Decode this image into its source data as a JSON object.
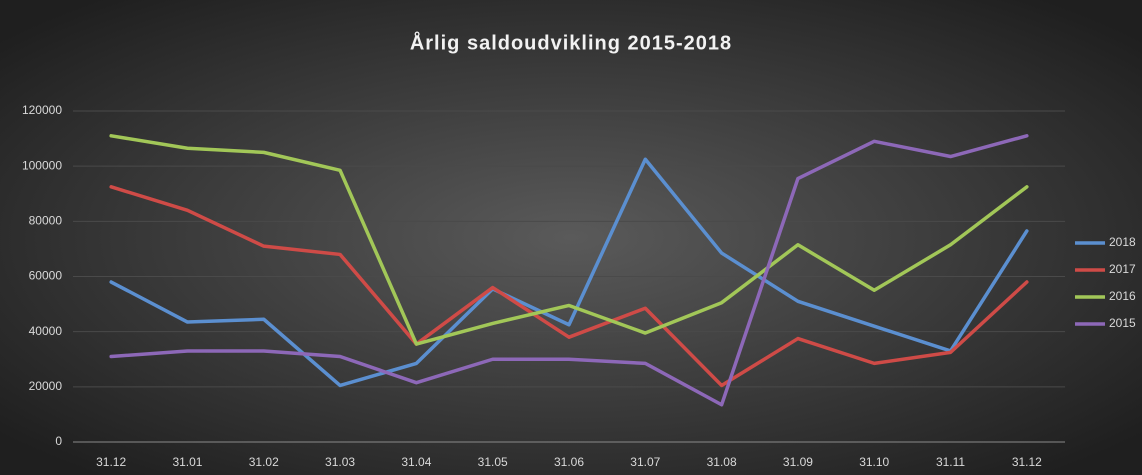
{
  "chart_data": {
    "type": "line",
    "title": "Årlig saldoudvikling 2015-2018",
    "categories": [
      "31.12",
      "31.01",
      "31.02",
      "31.03",
      "31.04",
      "31.05",
      "31.06",
      "31.07",
      "31.08",
      "31.09",
      "31.10",
      "31.11",
      "31.12"
    ],
    "series": [
      {
        "name": "2018",
        "color": "#5b8fd0",
        "values": [
          58000,
          43500,
          44500,
          20500,
          28500,
          55500,
          42500,
          102500,
          68500,
          51000,
          42000,
          33000,
          76500
        ]
      },
      {
        "name": "2017",
        "color": "#cf4b47",
        "values": [
          92500,
          84000,
          71000,
          68000,
          35500,
          56000,
          38000,
          48500,
          20500,
          37500,
          28500,
          32500,
          58000
        ]
      },
      {
        "name": "2016",
        "color": "#a2c758",
        "values": [
          111000,
          106500,
          105000,
          98500,
          35500,
          43000,
          49500,
          39500,
          50500,
          71500,
          55000,
          71500,
          92500
        ]
      },
      {
        "name": "2015",
        "color": "#8d68b8",
        "values": [
          31000,
          33000,
          33000,
          31000,
          21500,
          30000,
          30000,
          28500,
          13500,
          95500,
          109000,
          103500,
          111000
        ]
      }
    ],
    "ylim": [
      0,
      120000
    ],
    "yticks": [
      0,
      20000,
      40000,
      60000,
      80000,
      100000,
      120000
    ],
    "grid": true,
    "legend": "right"
  }
}
